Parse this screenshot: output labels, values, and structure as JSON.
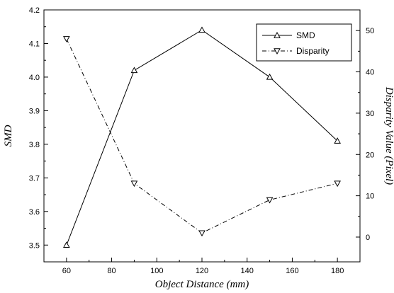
{
  "chart_data": {
    "type": "line",
    "xlabel": "Object Distance (mm)",
    "ylabel_left": "SMD",
    "ylabel_right": "Disparity Value (Pixel)",
    "x": [
      60,
      90,
      120,
      150,
      180
    ],
    "xlim": [
      50,
      190
    ],
    "xticks": [
      60,
      80,
      100,
      120,
      140,
      160,
      180
    ],
    "ylim_left": [
      3.45,
      4.2
    ],
    "yticks_left": [
      3.5,
      3.6,
      3.7,
      3.8,
      3.9,
      4.0,
      4.1,
      4.2
    ],
    "yticks_left_labels": [
      "3.5",
      "3.6",
      "3.7",
      "3.8",
      "3.9",
      "4.0",
      "4.1",
      "4.2"
    ],
    "ylim_right": [
      -6,
      55
    ],
    "yticks_right": [
      0,
      10,
      20,
      30,
      40,
      50
    ],
    "grid": false,
    "legend_position": "top-right",
    "series": [
      {
        "name": "SMD",
        "axis": "left",
        "values": [
          3.5,
          4.02,
          4.14,
          4.0,
          3.81
        ],
        "marker": "triangle-up",
        "line_style": "solid",
        "color": "#000000"
      },
      {
        "name": "Disparity",
        "axis": "right",
        "values": [
          48,
          13,
          1,
          9,
          13
        ],
        "marker": "triangle-down",
        "line_style": "dash-dot",
        "color": "#000000"
      }
    ]
  }
}
